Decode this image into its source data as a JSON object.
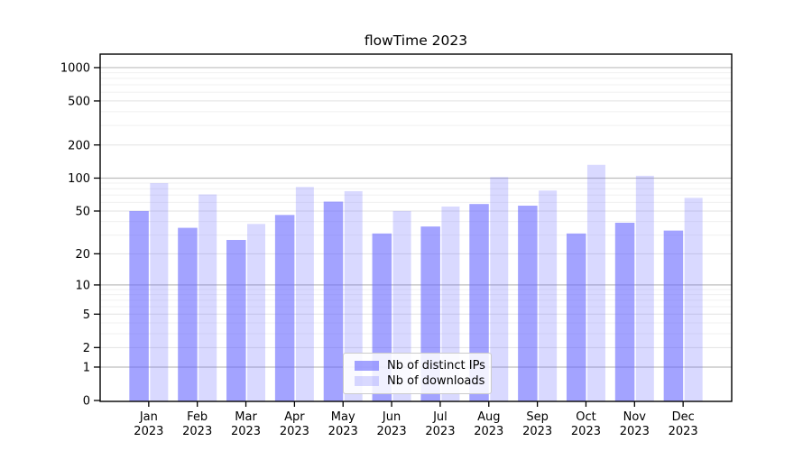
{
  "chart_data": {
    "type": "bar",
    "title": "flowTime 2023",
    "categories": [
      "Jan",
      "Feb",
      "Mar",
      "Apr",
      "May",
      "Jun",
      "Jul",
      "Aug",
      "Sep",
      "Oct",
      "Nov",
      "Dec"
    ],
    "category_year": "2023",
    "series": [
      {
        "name": "Nb of distinct IPs",
        "color": "rgba(102,102,255,0.6)",
        "values": [
          50,
          35,
          27,
          46,
          61,
          31,
          36,
          58,
          56,
          31,
          39,
          33
        ]
      },
      {
        "name": "Nb of downloads",
        "color": "rgba(102,102,255,0.25)",
        "values": [
          90,
          71,
          38,
          83,
          76,
          50,
          55,
          102,
          77,
          132,
          105,
          66
        ]
      }
    ],
    "y_axis": {
      "scale": "log1p",
      "ticks": [
        0,
        1,
        2,
        5,
        10,
        20,
        50,
        100,
        200,
        500,
        1000
      ],
      "range_top": 1325
    },
    "x_axis": {
      "label_line2_repeated": "2023"
    },
    "legend": {
      "position": "bottom-center"
    },
    "grid": {
      "horizontal": true,
      "vertical": false,
      "major_color": "#bdbdbd",
      "sub_color": "#e2e2e2",
      "minor_color": "#f0f0f0"
    },
    "colors": {
      "axis": "#000000",
      "text": "#000000",
      "background": "#ffffff"
    }
  }
}
